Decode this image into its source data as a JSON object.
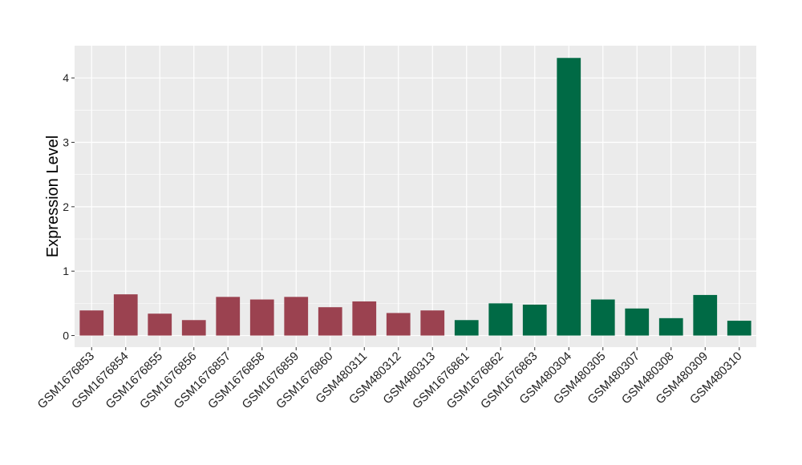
{
  "chart_data": {
    "type": "bar",
    "title": "",
    "xlabel": "",
    "ylabel": "Expression Level",
    "ylim": [
      -0.18,
      4.5
    ],
    "yticks": [
      0,
      1,
      2,
      3,
      4
    ],
    "grid": true,
    "panel_background": "#EBEBEB",
    "gridline_color": "#FFFFFF",
    "categories": [
      "GSM1676853",
      "GSM1676854",
      "GSM1676855",
      "GSM1676856",
      "GSM1676857",
      "GSM1676858",
      "GSM1676859",
      "GSM1676860",
      "GSM480311",
      "GSM480312",
      "GSM480313",
      "GSM1676861",
      "GSM1676862",
      "GSM1676863",
      "GSM480304",
      "GSM480305",
      "GSM480307",
      "GSM480308",
      "GSM480309",
      "GSM480310"
    ],
    "values": [
      0.39,
      0.64,
      0.34,
      0.24,
      0.6,
      0.56,
      0.6,
      0.44,
      0.53,
      0.35,
      0.39,
      0.24,
      0.5,
      0.48,
      4.31,
      0.56,
      0.42,
      0.27,
      0.63,
      0.23
    ],
    "groups": [
      0,
      0,
      0,
      0,
      0,
      0,
      0,
      0,
      0,
      0,
      0,
      1,
      1,
      1,
      1,
      1,
      1,
      1,
      1,
      1
    ],
    "group_colors": [
      "#9B4250",
      "#006A45"
    ]
  }
}
